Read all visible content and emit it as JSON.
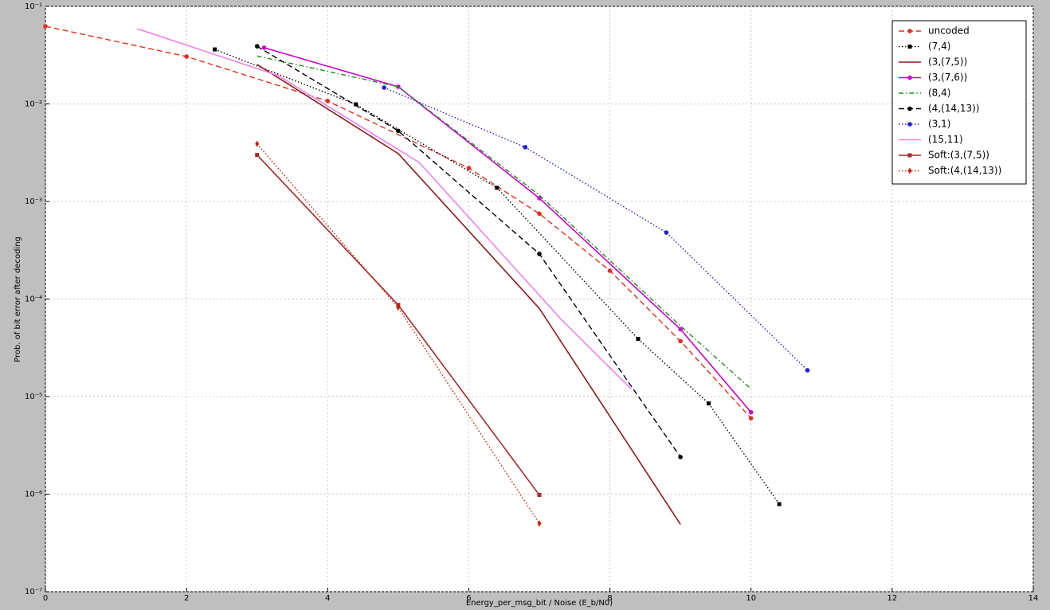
{
  "chart_data": {
    "type": "line",
    "log_y": true,
    "grid": true,
    "legend": "upper right",
    "xlabel": "Energy_per_msg_bit / Noise (E_b/N0)",
    "ylabel": "Prob. of bit error after decoding",
    "xlim": [
      0,
      14
    ],
    "xticks": [
      0,
      2,
      4,
      6,
      8,
      10,
      12,
      14
    ],
    "ylim": [
      1e-07,
      0.1
    ],
    "yticks": [
      {
        "value": 1e-07,
        "label": "10⁻⁷"
      },
      {
        "value": 1e-06,
        "label": "10⁻⁶"
      },
      {
        "value": 1e-05,
        "label": "10⁻⁵"
      },
      {
        "value": 0.0001,
        "label": "10⁻⁴"
      },
      {
        "value": 0.001,
        "label": "10⁻³"
      },
      {
        "value": 0.01,
        "label": "10⁻²"
      },
      {
        "value": 0.1,
        "label": "10⁻¹"
      }
    ],
    "series": [
      {
        "name": "uncoded",
        "color": "#e03020",
        "linestyle": "dashed",
        "marker": "circle",
        "x": [
          0,
          2,
          4,
          6,
          7,
          8,
          9,
          10
        ],
        "values": [
          0.0625,
          0.0306,
          0.0107,
          0.0022,
          0.00075,
          0.000195,
          3.7e-05,
          6e-06
        ]
      },
      {
        "name": "(7,4)",
        "color": "#000000",
        "linestyle": "dotted",
        "marker": "square",
        "x": [
          2.4,
          4.4,
          6.4,
          8.4,
          9.4,
          10.4
        ],
        "values": [
          0.0362,
          0.0099,
          0.00138,
          3.9e-05,
          8.5e-06,
          7.9e-07
        ]
      },
      {
        "name": "(3,(7,5))",
        "color": "#8b1a1a",
        "linestyle": "solid",
        "marker": null,
        "x": [
          3,
          5,
          7,
          9
        ],
        "values": [
          0.0254,
          0.0031,
          8e-05,
          4.9e-07
        ]
      },
      {
        "name": "(3,(7,6))",
        "color": "#cc00cc",
        "linestyle": "solid",
        "marker": "circle",
        "x": [
          3.1,
          5,
          7,
          9,
          10
        ],
        "values": [
          0.0377,
          0.015,
          0.00108,
          4.9e-05,
          6.9e-06
        ]
      },
      {
        "name": "(8,4)",
        "color": "#228b22",
        "linestyle": "dashdot",
        "marker": null,
        "x": [
          3,
          5,
          7,
          9,
          10
        ],
        "values": [
          0.031,
          0.015,
          0.00116,
          5.3e-05,
          1.2e-05
        ]
      },
      {
        "name": "(4,(14,13))",
        "color": "#000000",
        "linestyle": "dashed",
        "marker": "circle",
        "x": [
          3,
          5,
          7,
          9
        ],
        "values": [
          0.039,
          0.0053,
          0.00029,
          2.4e-06
        ]
      },
      {
        "name": "(3,1)",
        "color": "#2020dd",
        "linestyle": "dotted",
        "marker": "circle",
        "x": [
          4.8,
          6.8,
          8.8,
          10.8
        ],
        "values": [
          0.0147,
          0.0036,
          0.00048,
          1.86e-05
        ]
      },
      {
        "name": "(15,11)",
        "color": "#ee82ee",
        "linestyle": "solid",
        "marker": null,
        "x": [
          1.3,
          3.3,
          5.3,
          7.3,
          8.3
        ],
        "values": [
          0.059,
          0.0195,
          0.0025,
          6.3e-05,
          1.2e-05
        ]
      },
      {
        "name": "Soft:(3,(7,5))",
        "color": "#a52a2a",
        "linestyle": "solid",
        "marker": "square",
        "x": [
          3,
          5,
          7
        ],
        "values": [
          0.003,
          8.7e-05,
          9.8e-07
        ]
      },
      {
        "name": "Soft:(4,(14,13))",
        "color": "#cc2200",
        "linestyle": "dotted",
        "marker": "diamond",
        "x": [
          3,
          5,
          7
        ],
        "values": [
          0.0039,
          8.2e-05,
          5e-07
        ]
      }
    ]
  }
}
